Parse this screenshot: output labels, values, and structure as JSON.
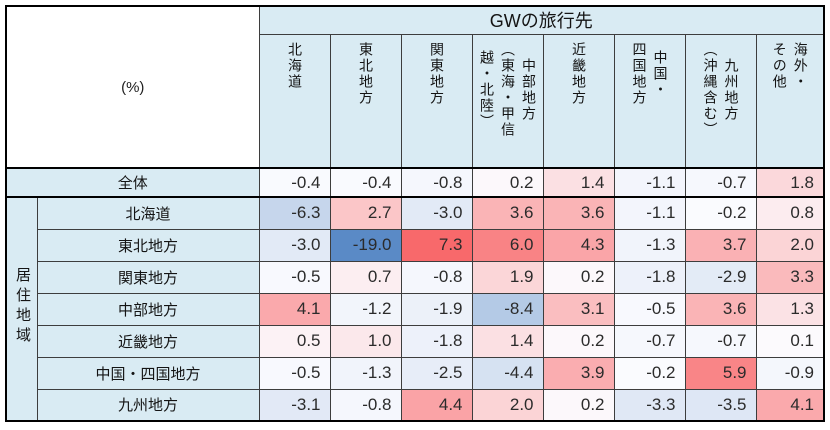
{
  "colors": {
    "header_bg": "#D9EBF3",
    "outer_border": "#000000",
    "inner_border": "#3D3D3D",
    "number_text": "#2B2B2B"
  },
  "chart_data": {
    "type": "heatmap",
    "title": "GWの旅行先",
    "unit": "(%)",
    "y_axis_group_label": "居住地域",
    "x_categories": [
      "北海道",
      "東北地方",
      "関東地方",
      "中部地方（東海・甲信越・北陸）",
      "近畿地方",
      "中国・四国地方",
      "九州地方（沖縄含む）",
      "海外・その他"
    ],
    "column_display": [
      "北海道",
      "東北地方",
      "関東地方",
      "中部地方\n（東海・甲信\n越・北陸）",
      "近畿地方",
      "中国・\n四国地方",
      "九州地方\n（沖縄含む）",
      "海外・\nその他"
    ],
    "y_categories": [
      "全体",
      "北海道",
      "東北地方",
      "関東地方",
      "中部地方",
      "近畿地方",
      "中国・四国地方",
      "九州地方"
    ],
    "values": [
      [
        -0.4,
        -0.4,
        -0.8,
        0.2,
        1.4,
        -1.1,
        -0.7,
        1.8
      ],
      [
        -6.3,
        2.7,
        -3.0,
        3.6,
        3.6,
        -1.1,
        -0.2,
        0.8
      ],
      [
        -3.0,
        -19.0,
        7.3,
        6.0,
        4.3,
        -1.3,
        3.7,
        2.0
      ],
      [
        -0.5,
        0.7,
        -0.8,
        1.9,
        0.2,
        -1.8,
        -2.9,
        3.3
      ],
      [
        4.1,
        -1.2,
        -1.9,
        -8.4,
        3.1,
        -0.5,
        3.6,
        1.3
      ],
      [
        0.5,
        1.0,
        -1.8,
        1.4,
        0.2,
        -0.7,
        -0.7,
        0.1
      ],
      [
        -0.5,
        -1.3,
        -2.5,
        -4.4,
        3.9,
        -0.2,
        5.9,
        -0.9
      ],
      [
        -3.1,
        -0.8,
        4.4,
        2.0,
        0.2,
        -3.3,
        -3.5,
        4.1
      ]
    ],
    "color_scale": {
      "min": -19.0,
      "mid": 0,
      "max": 7.3,
      "min_color": "#5A8AC6",
      "mid_color": "#FCFCFF",
      "max_color": "#F8696B"
    },
    "legend_position": "none",
    "grid": true
  }
}
